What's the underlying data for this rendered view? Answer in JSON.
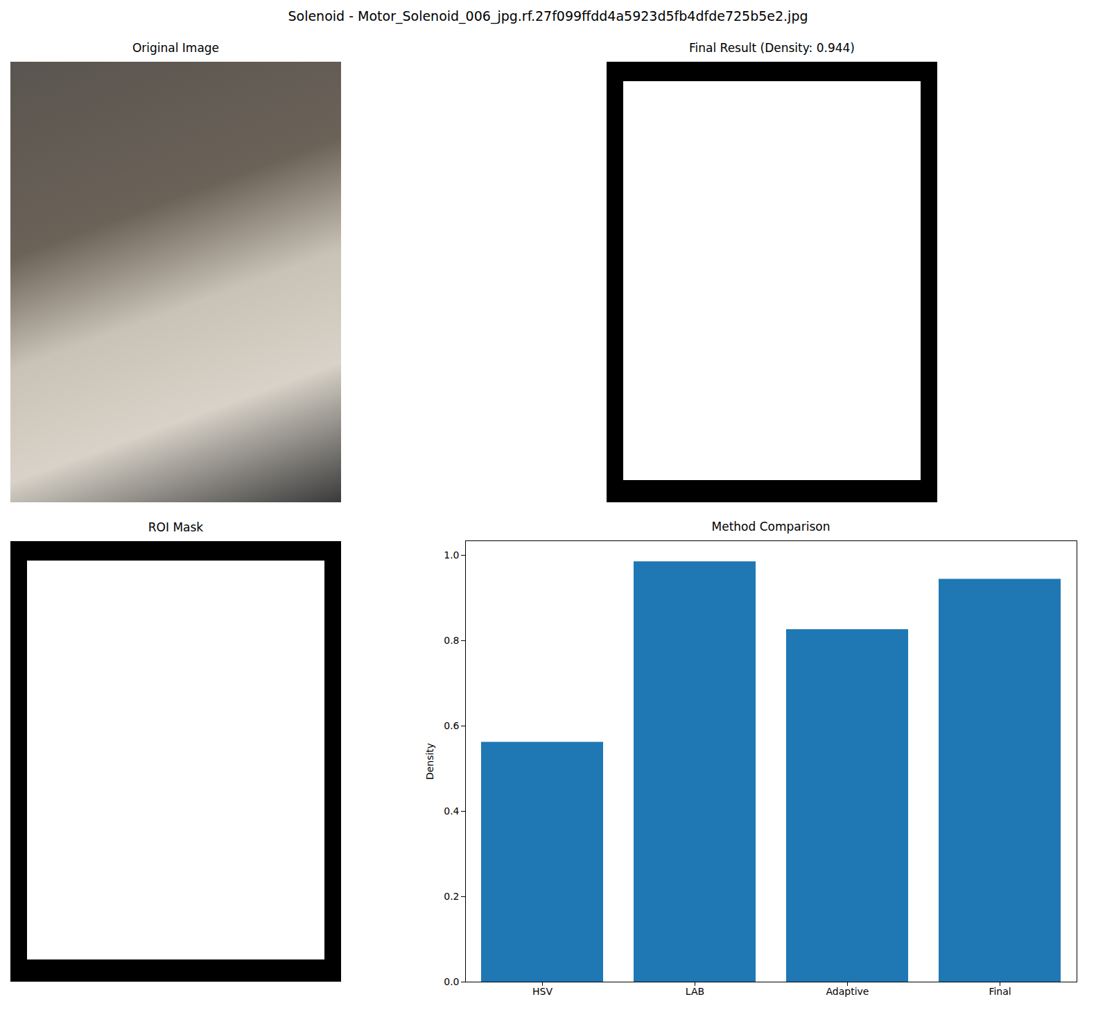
{
  "title": "Solenoid - Motor_Solenoid_006_jpg.rf.27f099ffdd4a5923d5fb4dfde725b5e2.jpg",
  "chart_data": [
    {
      "type": "image",
      "title": "Original Image"
    },
    {
      "type": "mask",
      "title": "Final Result (Density: 0.944)"
    },
    {
      "type": "mask",
      "title": "ROI Mask"
    },
    {
      "type": "bar",
      "title": "Method Comparison",
      "categories": [
        "HSV",
        "LAB",
        "Adaptive",
        "Final"
      ],
      "values": [
        0.562,
        0.985,
        0.826,
        0.944
      ],
      "color": "#1f77b4",
      "ylabel": "Density",
      "ylim": [
        0,
        1.034
      ],
      "yticks": [
        {
          "value": 0,
          "label": "0.0"
        },
        {
          "value": 0.2,
          "label": "0.2"
        },
        {
          "value": 0.4,
          "label": "0.4"
        },
        {
          "value": 0.6,
          "label": "0.6"
        },
        {
          "value": 0.8,
          "label": "0.8"
        },
        {
          "value": 1,
          "label": "1.0"
        }
      ],
      "grid": false
    }
  ]
}
